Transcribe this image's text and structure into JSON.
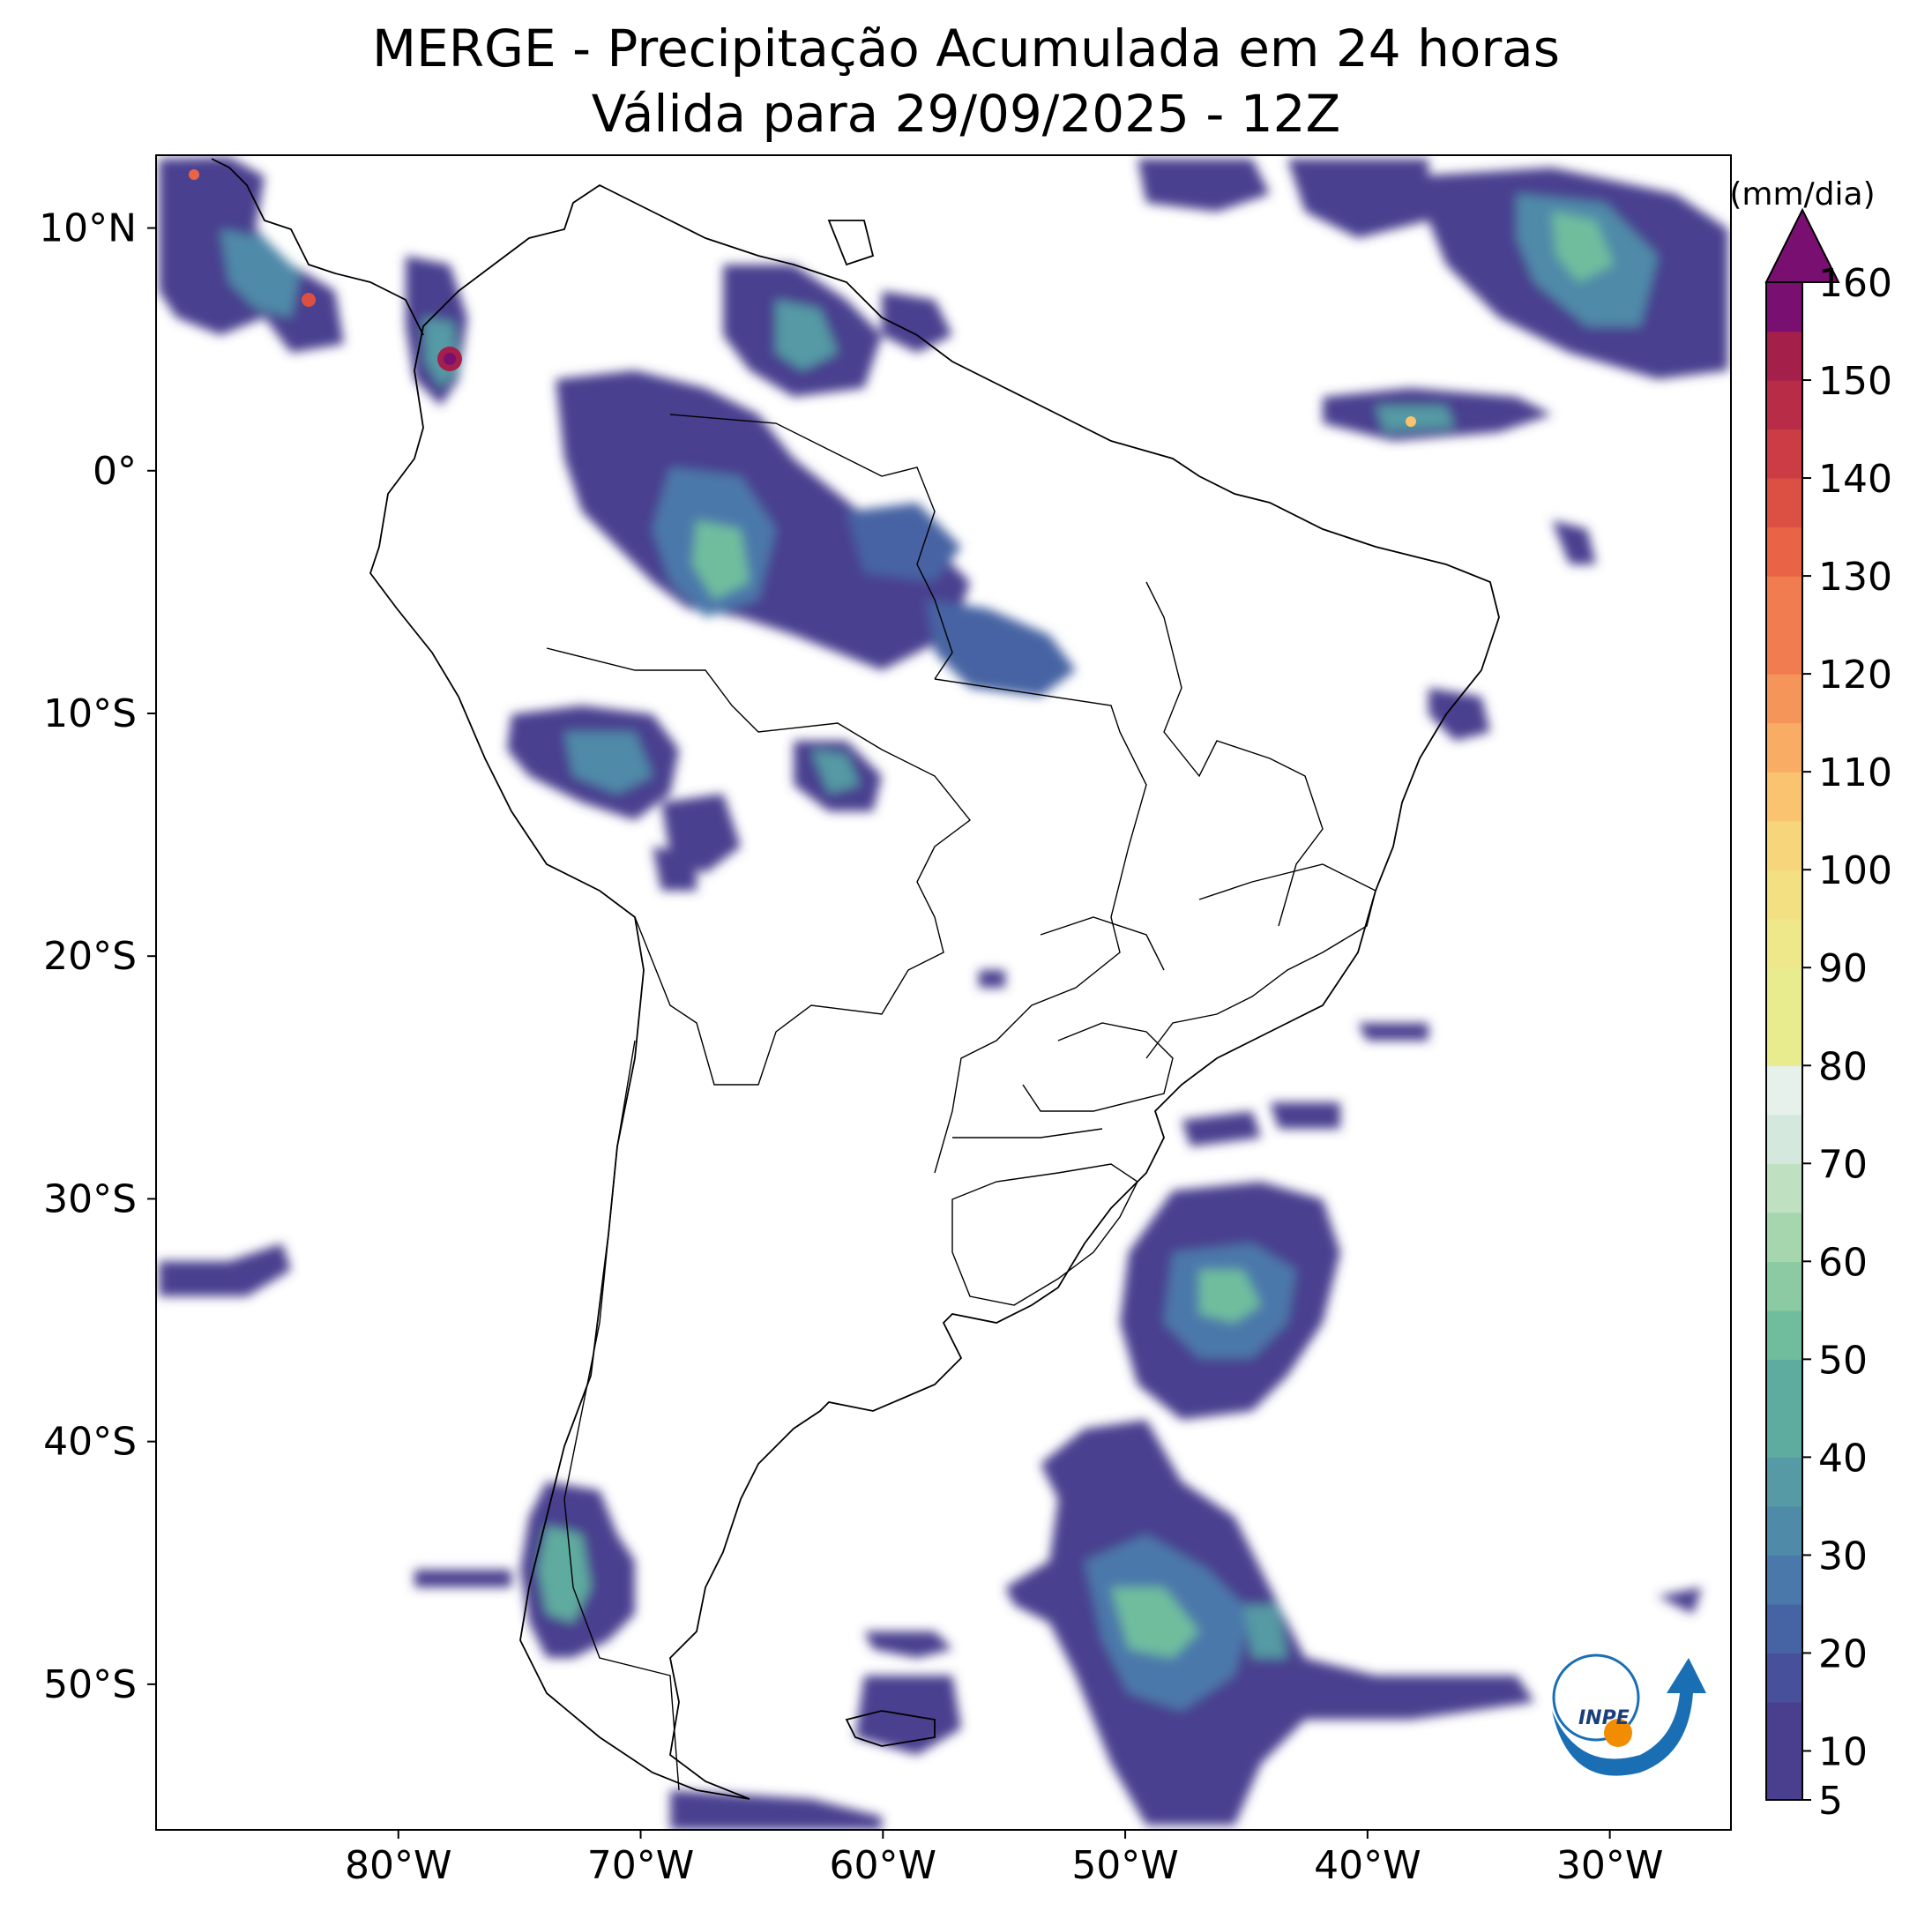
{
  "title": {
    "line1": "MERGE - Precipitação Acumulada em 24 horas",
    "line2": "Válida para 29/09/2025 - 12Z"
  },
  "map": {
    "lon_range": [
      -90,
      -25
    ],
    "lat_range": [
      -56,
      13
    ],
    "lon_ticks": [
      {
        "value": -80,
        "label": "80°W"
      },
      {
        "value": -70,
        "label": "70°W"
      },
      {
        "value": -60,
        "label": "60°W"
      },
      {
        "value": -50,
        "label": "50°W"
      },
      {
        "value": -40,
        "label": "40°W"
      },
      {
        "value": -30,
        "label": "30°W"
      }
    ],
    "lat_ticks": [
      {
        "value": 10,
        "label": "10°N"
      },
      {
        "value": 0,
        "label": "0°"
      },
      {
        "value": -10,
        "label": "10°S"
      },
      {
        "value": -20,
        "label": "20°S"
      },
      {
        "value": -30,
        "label": "30°S"
      },
      {
        "value": -40,
        "label": "40°S"
      },
      {
        "value": -50,
        "label": "50°S"
      }
    ]
  },
  "colorbar": {
    "unit": "(mm/dia)",
    "min": 5,
    "max": 160,
    "ticks": [
      "5",
      "10",
      "20",
      "30",
      "40",
      "50",
      "60",
      "70",
      "80",
      "90",
      "100",
      "110",
      "120",
      "130",
      "140",
      "150",
      "160"
    ],
    "colors": [
      "#4a3f8f",
      "#47509a",
      "#4663a3",
      "#4b78aa",
      "#4f8aa9",
      "#559aa4",
      "#5eab9f",
      "#70bd9e",
      "#8ccaa4",
      "#a6d6ad",
      "#bfe0c1",
      "#d4e8dd",
      "#e6f1ec",
      "#e8ec8e",
      "#eee88a",
      "#f3e083",
      "#f7d67b",
      "#f9c36f",
      "#f8ac64",
      "#f5955a",
      "#f07c4f",
      "#e96447",
      "#dc4f43",
      "#cc3c44",
      "#b82c48",
      "#a51f4b",
      "#7a0f72"
    ]
  },
  "logo": {
    "text": "INPE"
  }
}
